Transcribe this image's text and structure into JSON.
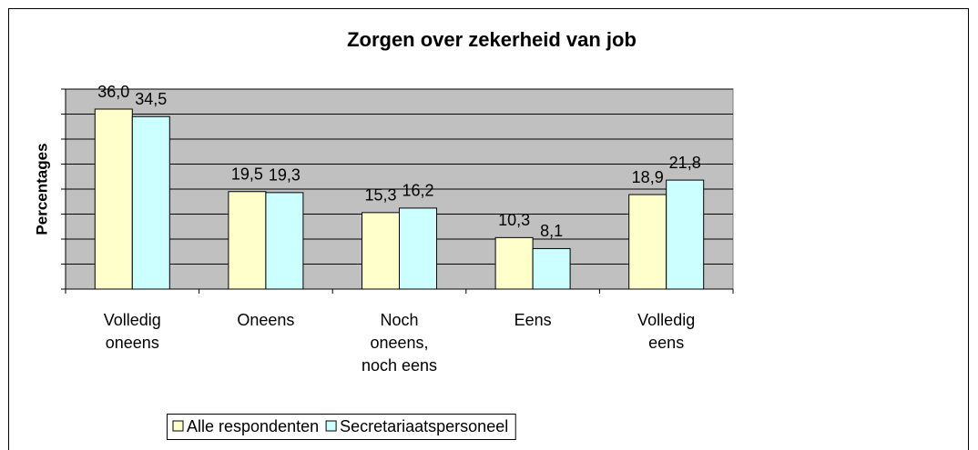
{
  "chart_data": {
    "type": "bar",
    "title": "Zorgen over zekerheid van job",
    "y_label": "Percentages",
    "categories": [
      "Volledig\noneens",
      "Oneens",
      "Noch\noneens,\nnoch eens",
      "Eens",
      "Volledig\neens"
    ],
    "series": [
      {
        "name": "Alle respondenten",
        "color": "#ffffcc",
        "values": [
          36.0,
          19.5,
          15.3,
          10.3,
          18.9
        ],
        "value_labels": [
          "36,0",
          "19,5",
          "15,3",
          "10,3",
          "18,9"
        ]
      },
      {
        "name": "Secretariaatspersoneel",
        "color": "#ccffff",
        "values": [
          34.5,
          19.3,
          16.2,
          8.1,
          21.8
        ],
        "value_labels": [
          "34,5",
          "19,3",
          "16,2",
          "8,1",
          "21,8"
        ]
      }
    ],
    "ylim": [
      0,
      40
    ],
    "yticks": [
      0,
      5,
      10,
      15,
      20,
      25,
      30,
      35,
      40
    ],
    "grid": true,
    "legend": "bottom"
  }
}
